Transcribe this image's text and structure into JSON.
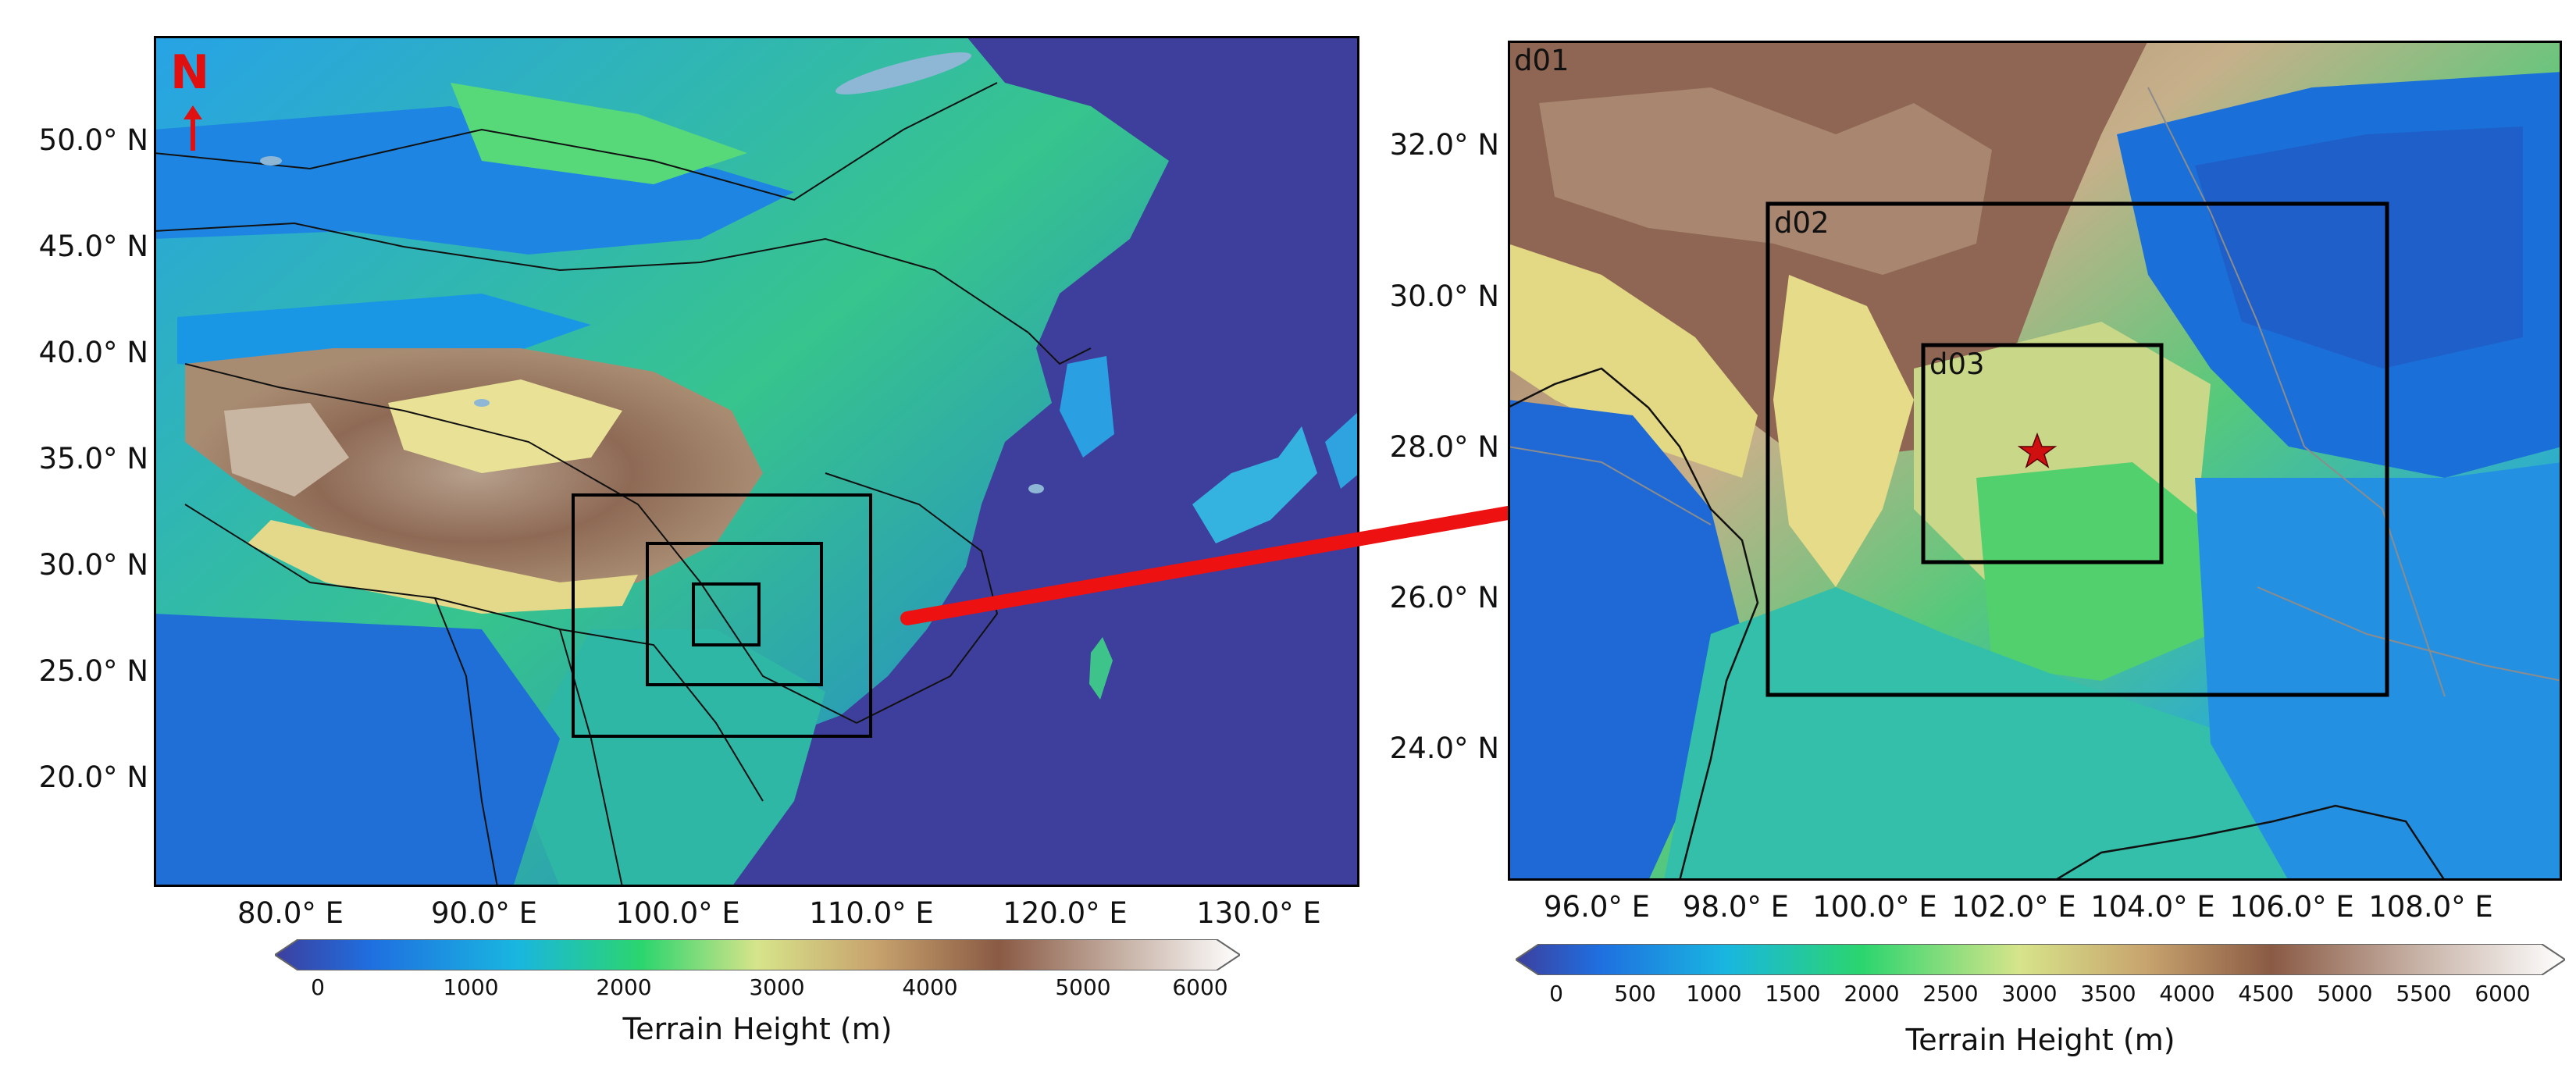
{
  "left_map": {
    "north_label": "N",
    "lat_labels": [
      "50.0° N",
      "45.0° N",
      "40.0° N",
      "35.0° N",
      "30.0° N",
      "25.0° N",
      "20.0° N"
    ],
    "lon_labels": [
      "80.0° E",
      "90.0° E",
      "100.0° E",
      "110.0° E",
      "120.0° E",
      "130.0° E"
    ],
    "colorbar": {
      "ticks": [
        "0",
        "1000",
        "2000",
        "3000",
        "4000",
        "5000",
        "6000"
      ],
      "title": "Terrain Height (m)"
    }
  },
  "right_map": {
    "domains": [
      "d01",
      "d02",
      "d03"
    ],
    "lat_labels": [
      "32.0° N",
      "30.0° N",
      "28.0° N",
      "26.0° N",
      "24.0° N"
    ],
    "lon_labels": [
      "96.0° E",
      "98.0° E",
      "100.0° E",
      "102.0° E",
      "104.0° E",
      "106.0° E",
      "108.0° E"
    ],
    "colorbar": {
      "ticks": [
        "0",
        "500",
        "1000",
        "1500",
        "2000",
        "2500",
        "3000",
        "3500",
        "4000",
        "4500",
        "5000",
        "5500",
        "6000"
      ],
      "title": "Terrain Height (m)"
    }
  },
  "colors": {
    "ocean": "#3d3f9e",
    "lowland": "#1f7ae0",
    "midland": "#29d36e",
    "highland": "#e3d77a",
    "mountain": "#8a5a44",
    "peak": "#f0ece8",
    "arrow": "#ee1111",
    "star": "#d01010"
  }
}
